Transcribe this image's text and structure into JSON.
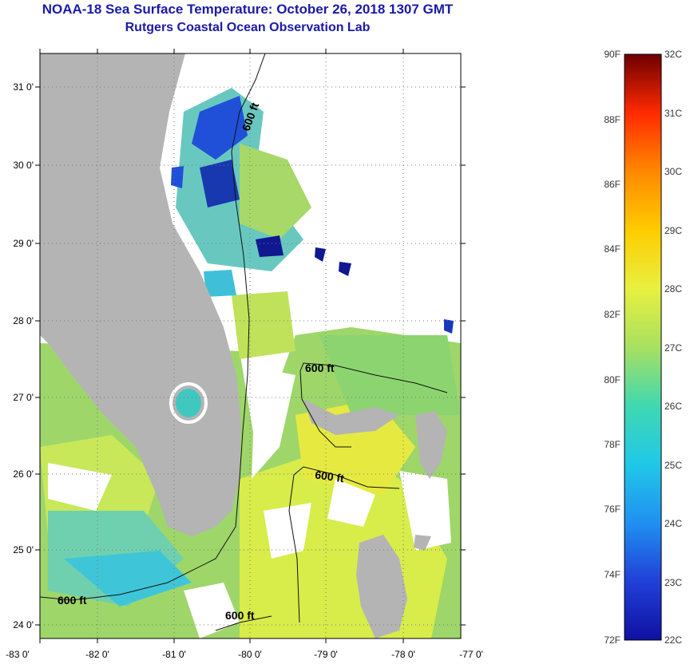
{
  "header": {
    "title": "NOAA-18 Sea Surface Temperature:  October 26, 2018 1307 GMT",
    "subtitle": "Rutgers Coastal Ocean Observation Lab"
  },
  "map": {
    "lat_labels": [
      "31 0'",
      "30 0'",
      "29 0'",
      "28 0'",
      "27 0'",
      "26 0'",
      "25 0'",
      "24 0'"
    ],
    "lon_labels": [
      "-83 0'",
      "-82 0'",
      "-81 0'",
      "-80 0'",
      "-79 0'",
      "-78 0'",
      "-77 0'"
    ],
    "contour_labels": [
      "600 ft",
      "600 ft",
      "600 ft",
      "600 ft",
      "600 ft"
    ]
  },
  "colorbar": {
    "fahrenheit": [
      "90F",
      "88F",
      "86F",
      "84F",
      "82F",
      "80F",
      "78F",
      "76F",
      "74F",
      "72F"
    ],
    "celsius": [
      "32C",
      "31C",
      "30C",
      "29C",
      "28C",
      "27C",
      "26C",
      "25C",
      "24C",
      "23C",
      "22C"
    ],
    "colors": [
      "#7a0000",
      "#cc0000",
      "#ff3300",
      "#ff8800",
      "#ffcc00",
      "#e8f040",
      "#a8e060",
      "#40d8b0",
      "#20c8e8",
      "#2070e0",
      "#1010a0"
    ]
  }
}
